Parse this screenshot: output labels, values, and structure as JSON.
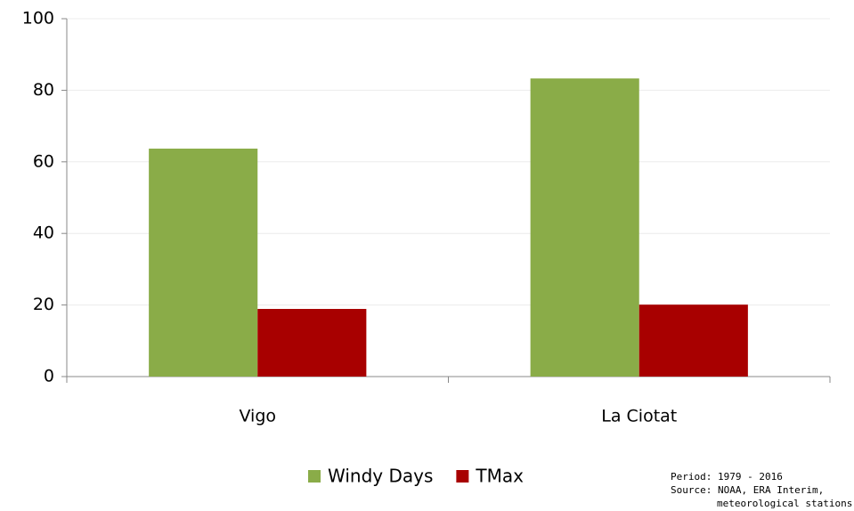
{
  "chart_data": {
    "type": "bar",
    "categories": [
      "Vigo",
      "La Ciotat"
    ],
    "series": [
      {
        "name": "Windy Days",
        "color": "#8aac48",
        "values": [
          63.7,
          83.3
        ]
      },
      {
        "name": "TMax",
        "color": "#a80000",
        "values": [
          18.9,
          20.1
        ]
      }
    ],
    "ylim": [
      0,
      100
    ],
    "yticks": [
      0,
      20,
      40,
      60,
      80,
      100
    ],
    "grid": true,
    "legend": "bottom",
    "annotations": [
      "Period: 1979 - 2016",
      "Source: NOAA, ERA Interim,",
      "meteorological stations"
    ]
  }
}
